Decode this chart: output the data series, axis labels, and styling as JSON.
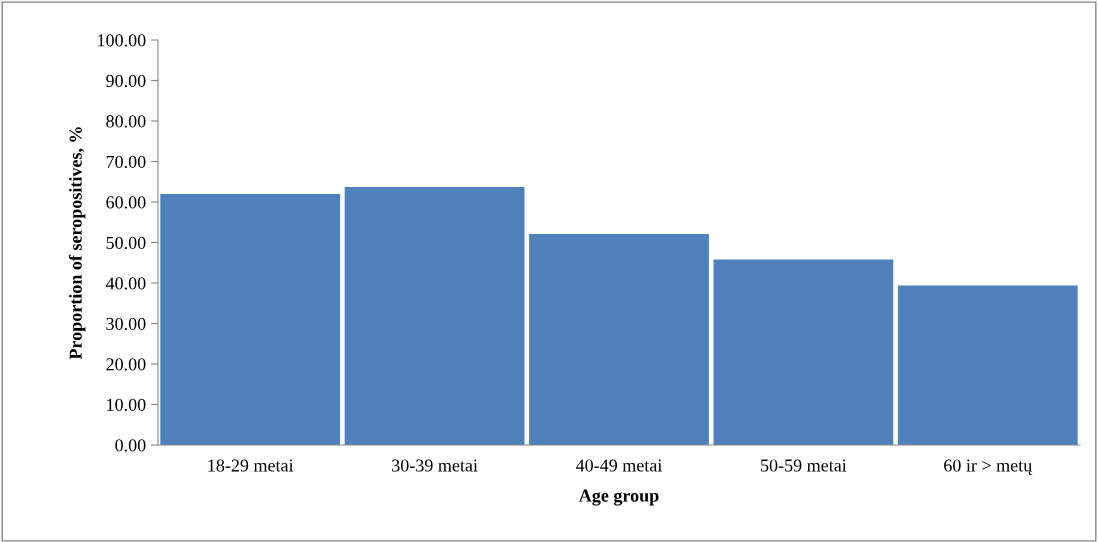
{
  "chart_data": {
    "type": "bar",
    "xlabel": "Age group",
    "ylabel": "Proportion of seropositives, %",
    "categories": [
      "18-29 metai",
      "30-39 metai",
      "40-49 metai",
      "50-59 metai",
      "60 ir > metų"
    ],
    "values": [
      62.0,
      63.7,
      52.1,
      45.8,
      39.4
    ],
    "color": "#4f81bd",
    "ylim": [
      0,
      100
    ],
    "yticks": [
      {
        "value": 0,
        "label": "0.00"
      },
      {
        "value": 10,
        "label": "10.00"
      },
      {
        "value": 20,
        "label": "20.00"
      },
      {
        "value": 30,
        "label": "30.00"
      },
      {
        "value": 40,
        "label": "40.00"
      },
      {
        "value": 50,
        "label": "50.00"
      },
      {
        "value": 60,
        "label": "60.00"
      },
      {
        "value": 70,
        "label": "70.00"
      },
      {
        "value": 80,
        "label": "80.00"
      },
      {
        "value": 90,
        "label": "90.00"
      },
      {
        "value": 100,
        "label": "100.00"
      }
    ],
    "grid": false,
    "legend": false
  }
}
